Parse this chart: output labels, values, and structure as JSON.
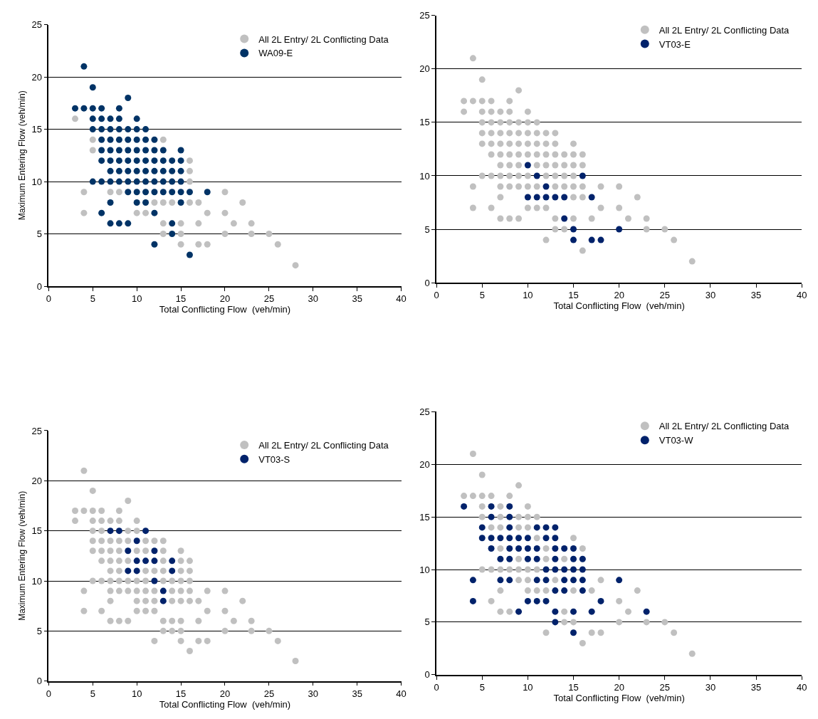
{
  "chart_data": [
    {
      "type": "scatter",
      "xlabel": "Total Conflicting Flow  (veh/min)",
      "ylabel": "Maximum Entering Flow (veh/min)",
      "xlim": [
        0,
        40
      ],
      "xticks": [
        0,
        5,
        10,
        15,
        20,
        25,
        30,
        35,
        40
      ],
      "ylim": [
        0,
        25
      ],
      "yticks": [
        0,
        5,
        10,
        15,
        20,
        25
      ],
      "grid": "y",
      "legend": "top right",
      "marker": "circle",
      "series": [
        {
          "name": "All 2L Entry/ 2L Conflicting Data",
          "color": "#c0c0c0",
          "x": [
            3,
            5,
            13,
            5,
            16,
            16,
            16,
            4,
            7,
            8,
            20,
            12,
            13,
            14,
            16,
            17,
            22,
            4,
            10,
            11,
            18,
            20,
            13,
            15,
            17,
            21,
            23,
            13,
            15,
            20,
            23,
            25,
            15,
            17,
            18,
            26,
            28
          ],
          "values": [
            16,
            14,
            14,
            13,
            12,
            11,
            10,
            9,
            9,
            9,
            9,
            8,
            8,
            8,
            8,
            8,
            8,
            7,
            7,
            7,
            7,
            7,
            6,
            6,
            6,
            6,
            6,
            5,
            5,
            5,
            5,
            5,
            4,
            4,
            4,
            4,
            2
          ]
        },
        {
          "name": "WA09-E",
          "color": "#003366",
          "x": [
            4,
            5,
            9,
            3,
            4,
            5,
            6,
            8,
            5,
            6,
            7,
            8,
            10,
            5,
            6,
            7,
            8,
            9,
            10,
            11,
            6,
            7,
            8,
            9,
            10,
            11,
            12,
            6,
            7,
            8,
            9,
            10,
            11,
            12,
            13,
            15,
            6,
            7,
            8,
            9,
            10,
            11,
            12,
            13,
            14,
            15,
            7,
            8,
            9,
            10,
            11,
            12,
            13,
            14,
            15,
            5,
            6,
            7,
            8,
            9,
            10,
            11,
            12,
            13,
            14,
            15,
            9,
            10,
            11,
            12,
            13,
            14,
            15,
            16,
            18,
            7,
            10,
            11,
            15,
            6,
            12,
            7,
            8,
            9,
            14,
            14,
            12,
            16
          ],
          "values": [
            21,
            19,
            18,
            17,
            17,
            17,
            17,
            17,
            16,
            16,
            16,
            16,
            16,
            15,
            15,
            15,
            15,
            15,
            15,
            15,
            14,
            14,
            14,
            14,
            14,
            14,
            14,
            13,
            13,
            13,
            13,
            13,
            13,
            13,
            13,
            13,
            12,
            12,
            12,
            12,
            12,
            12,
            12,
            12,
            12,
            12,
            11,
            11,
            11,
            11,
            11,
            11,
            11,
            11,
            11,
            10,
            10,
            10,
            10,
            10,
            10,
            10,
            10,
            10,
            10,
            10,
            9,
            9,
            9,
            9,
            9,
            9,
            9,
            9,
            9,
            8,
            8,
            8,
            8,
            7,
            7,
            6,
            6,
            6,
            6,
            5,
            4,
            3
          ]
        }
      ]
    },
    {
      "type": "scatter",
      "xlabel": "Total Conflicting Flow  (veh/min)",
      "xlim": [
        0,
        40
      ],
      "xticks": [
        0,
        5,
        10,
        15,
        20,
        25,
        30,
        35,
        40
      ],
      "ylim": [
        0,
        25
      ],
      "yticks": [
        0,
        5,
        10,
        15,
        20,
        25
      ],
      "grid": "y",
      "legend": "top right",
      "marker": "circle",
      "series": [
        {
          "name": "All 2L Entry/ 2L Conflicting Data",
          "color": "#c0c0c0",
          "x": [
            4,
            5,
            9,
            3,
            4,
            5,
            6,
            8,
            3,
            5,
            6,
            7,
            8,
            10,
            5,
            6,
            7,
            8,
            9,
            10,
            11,
            5,
            6,
            7,
            8,
            9,
            10,
            11,
            12,
            13,
            5,
            6,
            7,
            8,
            9,
            10,
            11,
            12,
            13,
            15,
            6,
            7,
            8,
            9,
            10,
            11,
            12,
            13,
            14,
            15,
            16,
            7,
            8,
            9,
            11,
            12,
            13,
            14,
            15,
            16,
            5,
            6,
            7,
            8,
            9,
            10,
            12,
            13,
            14,
            15,
            4,
            7,
            8,
            9,
            10,
            11,
            13,
            14,
            15,
            16,
            18,
            20,
            7,
            15,
            16,
            22,
            4,
            6,
            10,
            11,
            12,
            18,
            20,
            7,
            8,
            9,
            13,
            15,
            17,
            21,
            23,
            13,
            14,
            23,
            25,
            12,
            26,
            16,
            28
          ],
          "values": [
            21,
            19,
            18,
            17,
            17,
            17,
            17,
            17,
            16,
            16,
            16,
            16,
            16,
            16,
            15,
            15,
            15,
            15,
            15,
            15,
            15,
            14,
            14,
            14,
            14,
            14,
            14,
            14,
            14,
            14,
            13,
            13,
            13,
            13,
            13,
            13,
            13,
            13,
            13,
            13,
            12,
            12,
            12,
            12,
            12,
            12,
            12,
            12,
            12,
            12,
            12,
            11,
            11,
            11,
            11,
            11,
            11,
            11,
            11,
            11,
            10,
            10,
            10,
            10,
            10,
            10,
            10,
            10,
            10,
            10,
            9,
            9,
            9,
            9,
            9,
            9,
            9,
            9,
            9,
            9,
            9,
            9,
            8,
            8,
            8,
            8,
            7,
            7,
            7,
            7,
            7,
            7,
            7,
            6,
            6,
            6,
            6,
            6,
            6,
            6,
            6,
            5,
            5,
            5,
            5,
            4,
            4,
            3,
            2
          ]
        },
        {
          "name": "VT03-E",
          "color": "#00226b",
          "x": [
            10,
            11,
            16,
            12,
            10,
            11,
            12,
            13,
            14,
            17,
            14,
            15,
            20,
            15,
            17,
            18
          ],
          "values": [
            11,
            10,
            10,
            9,
            8,
            8,
            8,
            8,
            8,
            8,
            6,
            5,
            5,
            4,
            4,
            4
          ]
        }
      ]
    },
    {
      "type": "scatter",
      "xlabel": "Total Conflicting Flow  (veh/min)",
      "ylabel": "Maximum Entering Flow (veh/min)",
      "xlim": [
        0,
        40
      ],
      "xticks": [
        0,
        5,
        10,
        15,
        20,
        25,
        30,
        35,
        40
      ],
      "ylim": [
        0,
        25
      ],
      "yticks": [
        0,
        5,
        10,
        15,
        20,
        25
      ],
      "grid": "y",
      "legend": "top right",
      "marker": "circle",
      "series": [
        {
          "name": "All 2L Entry/ 2L Conflicting Data",
          "color": "#c0c0c0",
          "x": [
            4,
            5,
            9,
            3,
            4,
            5,
            6,
            8,
            3,
            5,
            6,
            7,
            8,
            10,
            5,
            6,
            9,
            10,
            5,
            6,
            7,
            8,
            9,
            11,
            12,
            13,
            5,
            6,
            7,
            8,
            10,
            11,
            13,
            15,
            6,
            7,
            8,
            9,
            13,
            15,
            16,
            7,
            8,
            11,
            12,
            13,
            15,
            16,
            5,
            6,
            7,
            8,
            9,
            10,
            11,
            13,
            14,
            15,
            16,
            4,
            7,
            8,
            9,
            10,
            11,
            12,
            14,
            15,
            16,
            18,
            20,
            7,
            10,
            11,
            12,
            14,
            15,
            16,
            17,
            22,
            4,
            6,
            10,
            11,
            12,
            18,
            20,
            7,
            8,
            9,
            13,
            14,
            15,
            17,
            21,
            23,
            13,
            14,
            15,
            20,
            23,
            25,
            12,
            15,
            17,
            18,
            26,
            16,
            28
          ],
          "values": [
            21,
            19,
            18,
            17,
            17,
            17,
            17,
            17,
            16,
            16,
            16,
            16,
            16,
            16,
            15,
            15,
            15,
            15,
            14,
            14,
            14,
            14,
            14,
            14,
            14,
            14,
            13,
            13,
            13,
            13,
            13,
            13,
            13,
            13,
            12,
            12,
            12,
            12,
            12,
            12,
            12,
            11,
            11,
            11,
            11,
            11,
            11,
            11,
            10,
            10,
            10,
            10,
            10,
            10,
            10,
            10,
            10,
            10,
            10,
            9,
            9,
            9,
            9,
            9,
            9,
            9,
            9,
            9,
            9,
            9,
            9,
            8,
            8,
            8,
            8,
            8,
            8,
            8,
            8,
            8,
            7,
            7,
            7,
            7,
            7,
            7,
            7,
            6,
            6,
            6,
            6,
            6,
            6,
            6,
            6,
            6,
            5,
            5,
            5,
            5,
            5,
            5,
            4,
            4,
            4,
            4,
            4,
            3,
            2
          ]
        },
        {
          "name": "VT03-S",
          "color": "#00226b",
          "x": [
            7,
            8,
            11,
            10,
            9,
            12,
            10,
            11,
            12,
            14,
            9,
            10,
            14,
            12,
            13,
            13
          ],
          "values": [
            15,
            15,
            15,
            14,
            13,
            13,
            12,
            12,
            12,
            12,
            11,
            11,
            11,
            10,
            9,
            8
          ]
        }
      ]
    },
    {
      "type": "scatter",
      "xlabel": "Total Conflicting Flow  (veh/min)",
      "xlim": [
        0,
        40
      ],
      "xticks": [
        0,
        5,
        10,
        15,
        20,
        25,
        30,
        35,
        40
      ],
      "ylim": [
        0,
        25
      ],
      "yticks": [
        0,
        5,
        10,
        15,
        20,
        25
      ],
      "grid": "y",
      "legend": "top right",
      "marker": "circle",
      "series": [
        {
          "name": "All 2L Entry/ 2L Conflicting Data",
          "color": "#c0c0c0",
          "x": [
            4,
            5,
            9,
            3,
            4,
            5,
            6,
            8,
            5,
            7,
            10,
            5,
            7,
            9,
            10,
            11,
            6,
            7,
            9,
            10,
            11,
            15,
            7,
            12,
            16,
            9,
            12,
            14,
            5,
            6,
            7,
            8,
            9,
            10,
            11,
            9,
            10,
            13,
            18,
            7,
            10,
            11,
            12,
            15,
            17,
            22,
            6,
            20,
            7,
            8,
            14,
            21,
            14,
            15,
            20,
            23,
            25,
            12,
            17,
            18,
            26,
            16,
            28
          ],
          "values": [
            21,
            19,
            18,
            17,
            17,
            17,
            17,
            17,
            16,
            16,
            16,
            15,
            15,
            15,
            15,
            15,
            14,
            14,
            14,
            14,
            13,
            13,
            12,
            12,
            12,
            11,
            11,
            11,
            10,
            10,
            10,
            10,
            10,
            10,
            10,
            9,
            9,
            9,
            9,
            8,
            8,
            8,
            8,
            8,
            8,
            8,
            7,
            7,
            6,
            6,
            6,
            6,
            5,
            5,
            5,
            5,
            5,
            4,
            4,
            4,
            4,
            3,
            2
          ]
        },
        {
          "name": "VT03-W",
          "color": "#00226b",
          "x": [
            3,
            6,
            8,
            6,
            8,
            5,
            8,
            11,
            12,
            13,
            5,
            6,
            7,
            8,
            9,
            10,
            12,
            13,
            6,
            8,
            9,
            10,
            11,
            13,
            14,
            15,
            7,
            8,
            10,
            11,
            13,
            15,
            16,
            12,
            13,
            14,
            15,
            16,
            4,
            7,
            8,
            11,
            12,
            14,
            15,
            16,
            20,
            13,
            14,
            16,
            4,
            10,
            11,
            12,
            18,
            9,
            13,
            15,
            17,
            23,
            13,
            15
          ],
          "values": [
            16,
            16,
            16,
            15,
            15,
            14,
            14,
            14,
            14,
            14,
            13,
            13,
            13,
            13,
            13,
            13,
            13,
            13,
            12,
            12,
            12,
            12,
            12,
            12,
            12,
            12,
            11,
            11,
            11,
            11,
            11,
            11,
            11,
            10,
            10,
            10,
            10,
            10,
            9,
            9,
            9,
            9,
            9,
            9,
            9,
            9,
            9,
            8,
            8,
            8,
            7,
            7,
            7,
            7,
            7,
            6,
            6,
            6,
            6,
            6,
            5,
            4
          ]
        }
      ]
    }
  ]
}
